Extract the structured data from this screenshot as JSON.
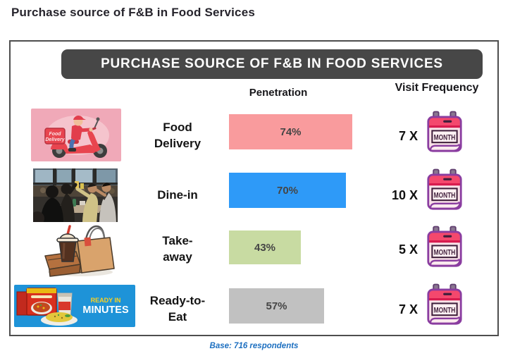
{
  "page": {
    "title": "Purchase source of F&B in Food Services"
  },
  "chart": {
    "banner_title": "PURCHASE SOURCE OF F&B IN FOOD SERVICES",
    "columns": {
      "penetration": "Penetration",
      "visit_frequency": "Visit Frequency"
    },
    "base_note": "Base: 716 respondents",
    "rows": [
      {
        "label": "Food\nDelivery",
        "penetration_label": "74%",
        "frequency_label": "7 X",
        "calendar_label": "MONTH",
        "image_caption_line1": "Food",
        "image_caption_line2": "Delivery",
        "bar_color": "#F99B9D"
      },
      {
        "label": "Dine-in",
        "penetration_label": "70%",
        "frequency_label": "10 X",
        "calendar_label": "MONTH",
        "bar_color": "#2E9AF8"
      },
      {
        "label": "Take-\naway",
        "penetration_label": "43%",
        "frequency_label": "5 X",
        "calendar_label": "MONTH",
        "bar_color": "#C8DBA2"
      },
      {
        "label": "Ready-to-\nEat",
        "penetration_label": "57%",
        "frequency_label": "7 X",
        "calendar_label": "MONTH",
        "image_text_top": "READY IN",
        "image_text_bottom": "MINUTES",
        "bar_color": "#C1C1C1"
      }
    ]
  },
  "chart_data": {
    "type": "bar",
    "orientation": "horizontal",
    "title": "Purchase source of F&B in Food Services",
    "banner": "PURCHASE SOURCE OF F&B IN FOOD SERVICES",
    "note": "Base: 716 respondents",
    "categories": [
      "Food Delivery",
      "Dine-in",
      "Take-away",
      "Ready-to-Eat"
    ],
    "series": [
      {
        "name": "Penetration (%)",
        "values": [
          74,
          70,
          43,
          57
        ]
      },
      {
        "name": "Visit Frequency (times per month)",
        "values": [
          7,
          10,
          5,
          7
        ]
      }
    ],
    "bar_colors": [
      "#F99B9D",
      "#2E9AF8",
      "#C8DBA2",
      "#C1C1C1"
    ],
    "xlim": [
      0,
      100
    ],
    "grid": false,
    "legend": false
  }
}
